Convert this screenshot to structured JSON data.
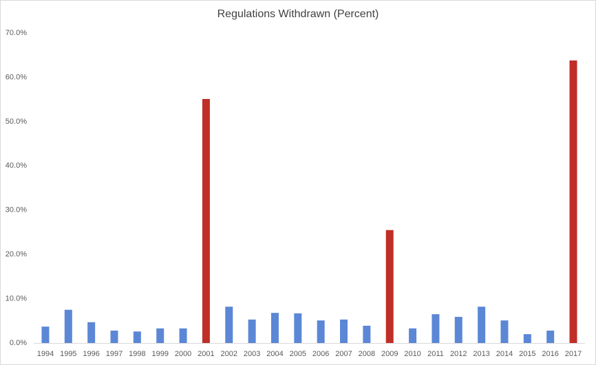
{
  "chart_data": {
    "type": "bar",
    "title": "Regulations Withdrawn (Percent)",
    "categories": [
      "1994",
      "1995",
      "1996",
      "1997",
      "1998",
      "1999",
      "2000",
      "2001",
      "2002",
      "2003",
      "2004",
      "2005",
      "2006",
      "2007",
      "2008",
      "2009",
      "2010",
      "2011",
      "2012",
      "2013",
      "2014",
      "2015",
      "2016",
      "2017"
    ],
    "values": [
      3.7,
      7.5,
      4.7,
      2.8,
      2.6,
      3.3,
      3.3,
      55.1,
      8.2,
      5.3,
      6.8,
      6.7,
      5.1,
      5.3,
      3.9,
      25.5,
      3.3,
      6.5,
      5.9,
      8.2,
      5.1,
      2.0,
      2.8,
      63.8
    ],
    "colors": [
      "#5b87d6",
      "#5b87d6",
      "#5b87d6",
      "#5b87d6",
      "#5b87d6",
      "#5b87d6",
      "#5b87d6",
      "#bf2f28",
      "#5b87d6",
      "#5b87d6",
      "#5b87d6",
      "#5b87d6",
      "#5b87d6",
      "#5b87d6",
      "#5b87d6",
      "#bf2f28",
      "#5b87d6",
      "#5b87d6",
      "#5b87d6",
      "#5b87d6",
      "#5b87d6",
      "#5b87d6",
      "#5b87d6",
      "#bf2f28"
    ],
    "ylim": [
      0,
      70
    ],
    "yticks": [
      {
        "value": 0,
        "label": "0.0%"
      },
      {
        "value": 10,
        "label": "10.0%"
      },
      {
        "value": 20,
        "label": "20.0%"
      },
      {
        "value": 30,
        "label": "30.0%"
      },
      {
        "value": 40,
        "label": "40.0%"
      },
      {
        "value": 50,
        "label": "50.0%"
      },
      {
        "value": 60,
        "label": "60.0%"
      },
      {
        "value": 70,
        "label": "70.0%"
      }
    ],
    "grid": false
  }
}
